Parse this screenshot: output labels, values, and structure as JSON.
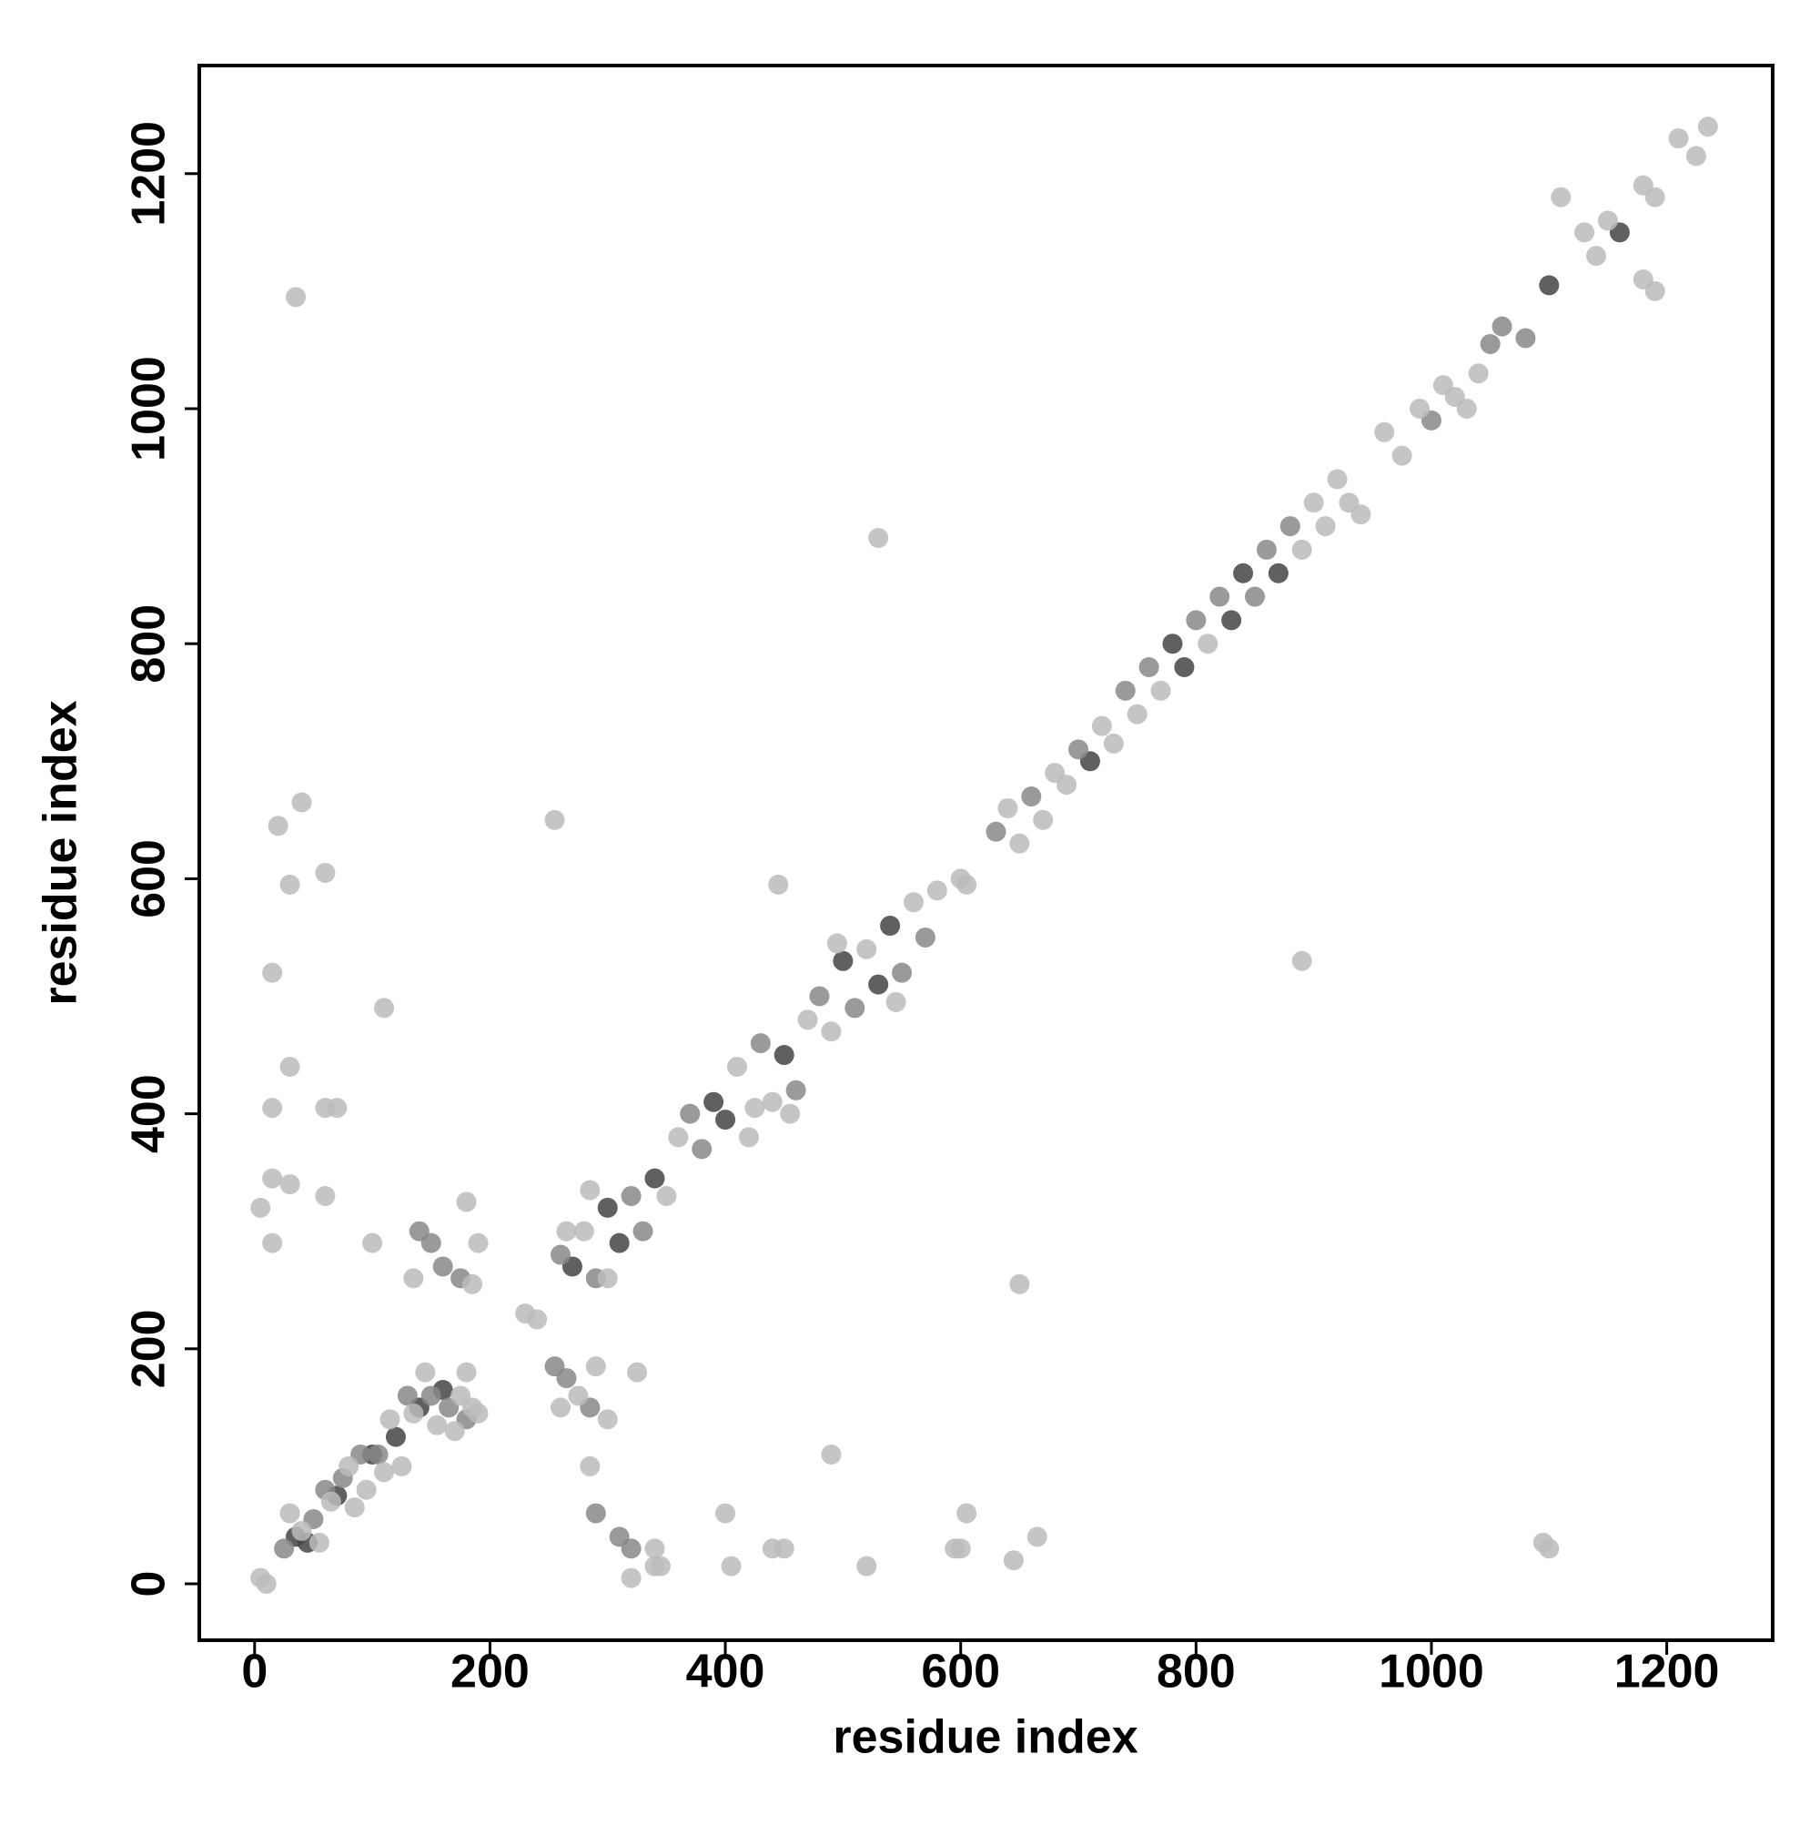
{
  "chart_data": {
    "type": "scatter",
    "xlabel": "residue index",
    "ylabel": "residue index",
    "xlim": [
      -47,
      1290
    ],
    "ylim": [
      -48,
      1292
    ],
    "xticks": [
      0,
      200,
      400,
      600,
      800,
      1000,
      1200
    ],
    "yticks": [
      0,
      200,
      400,
      600,
      800,
      1000,
      1200
    ],
    "series": [
      {
        "color": "#444444",
        "x": [
          35,
          45,
          70,
          100,
          140,
          160,
          120,
          270,
          300,
          310,
          340,
          390,
          400,
          450,
          500,
          530,
          540,
          710,
          780,
          790,
          830,
          840,
          870,
          1100,
          1160
        ],
        "y": [
          40,
          35,
          75,
          110,
          150,
          165,
          125,
          270,
          320,
          290,
          345,
          410,
          395,
          450,
          530,
          510,
          560,
          700,
          800,
          780,
          820,
          860,
          860,
          1105,
          1150
        ]
      },
      {
        "color": "#888888",
        "x": [
          25,
          50,
          60,
          75,
          90,
          105,
          130,
          150,
          165,
          180,
          260,
          290,
          320,
          330,
          370,
          380,
          430,
          460,
          480,
          510,
          550,
          570,
          630,
          660,
          700,
          740,
          760,
          800,
          820,
          850,
          860,
          880,
          1000,
          1060,
          1080,
          1050,
          140,
          150,
          160,
          175,
          255,
          265,
          285,
          290,
          320,
          310
        ],
        "y": [
          30,
          55,
          80,
          90,
          110,
          110,
          160,
          160,
          150,
          140,
          280,
          260,
          330,
          300,
          400,
          370,
          460,
          420,
          500,
          490,
          520,
          550,
          640,
          670,
          710,
          760,
          780,
          820,
          840,
          840,
          880,
          900,
          990,
          1070,
          1060,
          1055,
          300,
          290,
          270,
          260,
          185,
          175,
          150,
          60,
          30,
          40
        ]
      },
      {
        "color": "#bbbbbb",
        "x": [
          5,
          10,
          30,
          40,
          55,
          65,
          80,
          85,
          95,
          110,
          115,
          125,
          135,
          145,
          155,
          170,
          175,
          185,
          190,
          35,
          1095,
          40,
          665,
          20,
          645,
          30,
          595,
          60,
          605,
          15,
          520,
          110,
          490,
          30,
          440,
          15,
          405,
          60,
          70,
          5,
          320,
          15,
          345,
          30,
          340,
          60,
          15,
          100,
          180,
          255,
          650,
          530,
          890,
          445,
          230,
          240,
          185,
          190,
          180,
          135,
          275,
          260,
          290,
          300,
          325,
          280,
          265,
          300,
          285,
          350,
          360,
          410,
          420,
          440,
          470,
          425,
          455,
          490,
          520,
          560,
          580,
          495,
          545,
          600,
          605,
          640,
          650,
          670,
          680,
          690,
          720,
          730,
          750,
          770,
          810,
          890,
          900,
          910,
          920,
          930,
          940,
          960,
          975,
          990,
          1010,
          1020,
          1030,
          1040,
          1110,
          1140,
          1150,
          1180,
          1190,
          1180,
          1190,
          1210,
          1225,
          1235,
          1130,
          1100,
          600,
          400,
          450,
          340,
          285
        ],
        "y": [
          5,
          0,
          60,
          45,
          35,
          70,
          100,
          65,
          80,
          95,
          140,
          100,
          145,
          180,
          135,
          130,
          160,
          150,
          145,
          1095,
          35,
          665,
          40,
          645,
          20,
          595,
          30,
          605,
          60,
          520,
          15,
          490,
          110,
          440,
          30,
          405,
          15,
          405,
          405,
          320,
          5,
          345,
          15,
          340,
          30,
          330,
          290,
          290,
          180,
          650,
          255,
          890,
          530,
          595,
          230,
          225,
          255,
          290,
          325,
          260,
          160,
          150,
          185,
          140,
          180,
          300,
          300,
          260,
          335,
          330,
          380,
          440,
          380,
          410,
          480,
          405,
          400,
          470,
          540,
          580,
          590,
          545,
          495,
          600,
          595,
          660,
          630,
          650,
          690,
          680,
          730,
          715,
          740,
          760,
          800,
          880,
          920,
          900,
          940,
          920,
          910,
          980,
          960,
          1000,
          1020,
          1010,
          1000,
          1030,
          1180,
          1130,
          1160,
          1190,
          1180,
          1110,
          1100,
          1230,
          1215,
          1240,
          1150,
          30,
          30,
          60,
          30,
          15,
          100
        ]
      }
    ]
  }
}
